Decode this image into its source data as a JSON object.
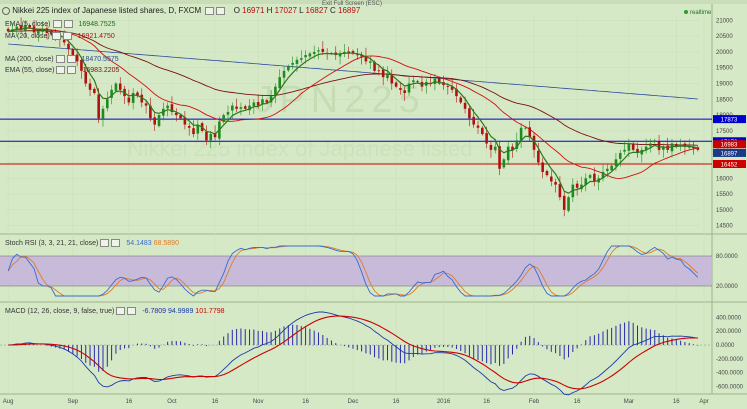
{
  "header": {
    "title": "Nikkei 225 index of Japanese listed shares, D, FXCM",
    "ohlc": {
      "o_label": "O",
      "o": "16971",
      "h_label": "H",
      "h": "17027",
      "l_label": "L",
      "l": "16827",
      "c_label": "C",
      "c": "16897"
    },
    "exit_fullscreen": "Exit Full Screen (ESC)",
    "realtime": "realtime"
  },
  "indicators": {
    "ema1": {
      "label": "EMA (5, close)",
      "value": "16948.7525"
    },
    "ma1": {
      "label": "MA (20, close)",
      "value": "16921.4750"
    },
    "ma2": {
      "label": "MA (200, close)",
      "value": "18470.5575"
    },
    "ema2": {
      "label": "EMA (55, close)",
      "value": "16983.2205"
    },
    "stoch": {
      "label": "Stoch RSI (3, 3, 21, 21, close)",
      "k": "54.1483",
      "d": "68.5890"
    },
    "macd": {
      "label": "MACD (12, 26, close, 9, false, true)",
      "v1": "-6.7809",
      "v2": "94.9989",
      "v3": "101.7798"
    }
  },
  "levels": [
    {
      "label": "17873",
      "value": 17873,
      "color": "#0000cc"
    },
    {
      "label": "17172",
      "value": 17172,
      "color": "#0000cc"
    },
    {
      "label": "16452",
      "value": 16452,
      "color": "#cc0000"
    }
  ],
  "price_badges": [
    {
      "label": "16983",
      "value": 16983,
      "color": "#cc0000"
    },
    {
      "label": "16897",
      "value": 16897,
      "color": "#1a3a8a"
    }
  ],
  "price_axis": [
    "21000",
    "20500",
    "20000",
    "19500",
    "19000",
    "18500",
    "18000",
    "17500",
    "17000",
    "16500",
    "16000",
    "15500",
    "15000",
    "14500"
  ],
  "stoch_axis": [
    "80.0000",
    "20.0000"
  ],
  "macd_axis": [
    "400.0000",
    "200.0000",
    "0.0000",
    "-200.0000",
    "-400.0000",
    "-600.0000"
  ],
  "time_axis": [
    "Aug",
    "Sep",
    "16",
    "Oct",
    "16",
    "Nov",
    "16",
    "Dec",
    "16",
    "2016",
    "16",
    "Feb",
    "16",
    "Mar",
    "16",
    "Apr"
  ],
  "colors": {
    "bg": "#d6e9c6",
    "up": "#1f8a1f",
    "down": "#b01010",
    "ema5": "#2a7a1a",
    "ma20": "#d01010",
    "ma200": "#2a4a9a",
    "ema55": "#7a1010",
    "stochK": "#3a6ad0",
    "stochD": "#e07a2a",
    "stochBand": "#c5b3dd",
    "macdLine": "#1a3aaa",
    "signal": "#cc0000",
    "hist": "#2a2aaa"
  },
  "chart_data": [
    {
      "type": "candlestick",
      "title": "Nikkei 225 index of Japanese listed shares, D, FXCM",
      "ylim": [
        14300,
        21200
      ],
      "x_ticks": [
        "Aug",
        "Sep",
        "16",
        "Oct",
        "16",
        "Nov",
        "16",
        "Dec",
        "16",
        "2016",
        "16",
        "Feb",
        "16",
        "Mar",
        "16",
        "Apr"
      ],
      "closes": [
        20650,
        20720,
        20800,
        20700,
        20850,
        20780,
        20620,
        20650,
        20730,
        20600,
        20550,
        20500,
        20400,
        20300,
        20100,
        19900,
        19700,
        19400,
        19000,
        18800,
        18700,
        17900,
        18200,
        18500,
        18800,
        19000,
        18800,
        18600,
        18400,
        18700,
        18600,
        18400,
        18300,
        17900,
        17700,
        18000,
        18200,
        18300,
        18100,
        18000,
        17900,
        17700,
        17600,
        17400,
        17700,
        17500,
        17200,
        17400,
        17300,
        17800,
        18000,
        18100,
        18300,
        18200,
        18250,
        18200,
        18300,
        18400,
        18300,
        18500,
        18400,
        18600,
        18900,
        19200,
        19400,
        19550,
        19650,
        19750,
        19800,
        19900,
        19950,
        20000,
        20050,
        20000,
        19950,
        19950,
        19900,
        19950,
        20000,
        19980,
        19950,
        19900,
        19850,
        19700,
        19700,
        19400,
        19400,
        19200,
        19300,
        19000,
        18900,
        18800,
        18700,
        19000,
        19100,
        19050,
        18900,
        19050,
        19000,
        19150,
        19000,
        18950,
        18900,
        18800,
        18600,
        18400,
        18200,
        17900,
        17700,
        17600,
        17400,
        17100,
        16900,
        17000,
        16300,
        16600,
        17000,
        16900,
        17200,
        17600,
        17600,
        17300,
        16900,
        16500,
        16200,
        16100,
        15900,
        15800,
        15400,
        15000,
        15400,
        15800,
        15700,
        15800,
        16000,
        16100,
        15900,
        16000,
        16200,
        16300,
        16400,
        16600,
        16800,
        16900,
        17100,
        16900,
        16800,
        16900,
        17000,
        17100,
        17200,
        16900,
        17000,
        16900,
        17100,
        17000,
        17050,
        17000,
        17000,
        16950,
        16900
      ],
      "highs_offset": 150,
      "lows_offset": 150,
      "series": [
        {
          "name": "EMA (5, close)",
          "value": "16948.7525"
        },
        {
          "name": "MA (20, close)",
          "value": "16921.4750"
        },
        {
          "name": "MA (200, close)",
          "value": "18470.5575"
        },
        {
          "name": "EMA (55, close)",
          "value": "16983.2205"
        }
      ],
      "hlines": [
        17873,
        17172,
        16452
      ]
    },
    {
      "type": "line",
      "title": "Stoch RSI (3, 3, 21, 21, close)",
      "ylim": [
        0,
        100
      ],
      "band": [
        20,
        80
      ],
      "series": [
        {
          "name": "K",
          "last": "54.1483"
        },
        {
          "name": "D",
          "last": "68.5890"
        }
      ]
    },
    {
      "type": "bar",
      "title": "MACD (12, 26, close, 9, false, true)",
      "ylim": [
        -650,
        420
      ],
      "series": [
        {
          "name": "Histogram",
          "last": "-6.7809"
        },
        {
          "name": "MACD",
          "last": "94.9989"
        },
        {
          "name": "Signal",
          "last": "101.7798"
        }
      ]
    }
  ]
}
